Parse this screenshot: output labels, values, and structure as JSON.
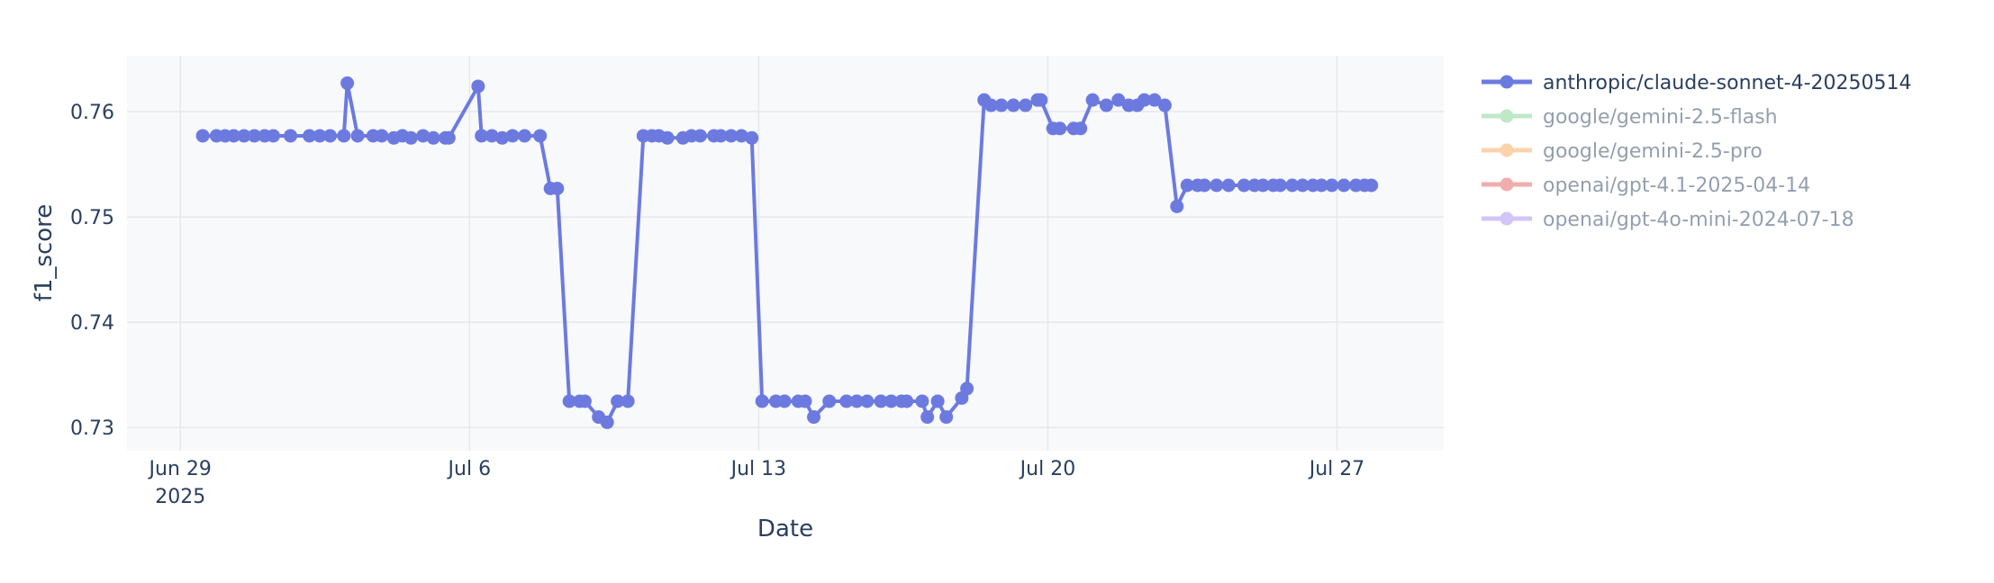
{
  "chart_data": {
    "type": "line",
    "x_label": "Date",
    "y_label": "f1_score",
    "xlim": [
      "2025-06-27T17:00",
      "2025-07-29T14:00"
    ],
    "ylim": [
      0.7278,
      0.7653
    ],
    "yticks": [
      0.73,
      0.74,
      0.75,
      0.76
    ],
    "xticks": [
      {
        "value": "2025-06-29T00:00",
        "label": "Jun 29\n2025"
      },
      {
        "value": "2025-07-06T00:00",
        "label": "Jul 6"
      },
      {
        "value": "2025-07-13T00:00",
        "label": "Jul 13"
      },
      {
        "value": "2025-07-20T00:00",
        "label": "Jul 20"
      },
      {
        "value": "2025-07-27T00:00",
        "label": "Jul 27"
      }
    ],
    "grid": true,
    "legend": "right",
    "x": [
      "2025-06-29T13:00",
      "2025-06-29T21:00",
      "2025-06-30T02:00",
      "2025-06-30T07:00",
      "2025-06-30T13:00",
      "2025-06-30T19:00",
      "2025-07-01T01:00",
      "2025-07-01T06:00",
      "2025-07-01T16:00",
      "2025-07-02T03:00",
      "2025-07-02T09:00",
      "2025-07-02T15:00",
      "2025-07-02T23:00",
      "2025-07-03T01:00",
      "2025-07-03T07:00",
      "2025-07-03T16:00",
      "2025-07-03T21:00",
      "2025-07-04T04:00",
      "2025-07-04T09:00",
      "2025-07-04T14:00",
      "2025-07-04T21:00",
      "2025-07-05T03:00",
      "2025-07-05T10:00",
      "2025-07-05T12:00",
      "2025-07-06T05:00",
      "2025-07-06T07:00",
      "2025-07-06T13:00",
      "2025-07-06T19:00",
      "2025-07-07T01:00",
      "2025-07-07T08:00",
      "2025-07-07T17:00",
      "2025-07-07T23:00",
      "2025-07-08T03:00",
      "2025-07-08T10:00",
      "2025-07-08T16:00",
      "2025-07-08T19:00",
      "2025-07-09T03:00",
      "2025-07-09T08:00",
      "2025-07-09T14:00",
      "2025-07-09T20:00",
      "2025-07-10T05:00",
      "2025-07-10T10:00",
      "2025-07-10T14:00",
      "2025-07-10T19:00",
      "2025-07-11T04:00",
      "2025-07-11T09:00",
      "2025-07-11T14:00",
      "2025-07-11T22:00",
      "2025-07-12T02:00",
      "2025-07-12T08:00",
      "2025-07-12T14:00",
      "2025-07-12T20:00",
      "2025-07-13T02:00",
      "2025-07-13T10:00",
      "2025-07-13T15:00",
      "2025-07-13T23:00",
      "2025-07-14T03:00",
      "2025-07-14T08:00",
      "2025-07-14T17:00",
      "2025-07-15T03:00",
      "2025-07-15T09:00",
      "2025-07-15T15:00",
      "2025-07-15T23:00",
      "2025-07-16T05:00",
      "2025-07-16T11:00",
      "2025-07-16T14:00",
      "2025-07-16T23:00",
      "2025-07-17T02:00",
      "2025-07-17T08:00",
      "2025-07-17T13:00",
      "2025-07-17T22:00",
      "2025-07-18T01:00",
      "2025-07-18T11:00",
      "2025-07-18T15:00",
      "2025-07-18T21:00",
      "2025-07-19T04:00",
      "2025-07-19T11:00",
      "2025-07-19T18:00",
      "2025-07-19T20:00",
      "2025-07-20T03:00",
      "2025-07-20T07:00",
      "2025-07-20T15:00",
      "2025-07-20T19:00",
      "2025-07-21T02:00",
      "2025-07-21T10:00",
      "2025-07-21T17:00",
      "2025-07-21T23:00",
      "2025-07-22T04:00",
      "2025-07-22T08:00",
      "2025-07-22T14:00",
      "2025-07-22T20:00",
      "2025-07-23T03:00",
      "2025-07-23T09:00",
      "2025-07-23T15:00",
      "2025-07-23T19:00",
      "2025-07-24T02:00",
      "2025-07-24T09:00",
      "2025-07-24T18:00",
      "2025-07-25T00:00",
      "2025-07-25T05:00",
      "2025-07-25T11:00",
      "2025-07-25T15:00",
      "2025-07-25T22:00",
      "2025-07-26T04:00",
      "2025-07-26T10:00",
      "2025-07-26T15:00",
      "2025-07-26T21:00",
      "2025-07-27T04:00",
      "2025-07-27T11:00",
      "2025-07-27T16:00",
      "2025-07-27T20:00"
    ],
    "series": [
      {
        "name": "anthropic/claude-sonnet-4-20250514",
        "color": "#6c7ae0",
        "values": [
          0.7577,
          0.7577,
          0.7577,
          0.7577,
          0.7577,
          0.7577,
          0.7577,
          0.7577,
          0.7577,
          0.7577,
          0.7577,
          0.7577,
          0.7577,
          0.7627,
          0.7577,
          0.7577,
          0.7577,
          0.7575,
          0.7577,
          0.7575,
          0.7577,
          0.7575,
          0.7575,
          0.7575,
          0.7624,
          0.7577,
          0.7577,
          0.7575,
          0.7577,
          0.7577,
          0.7577,
          0.7527,
          0.7527,
          0.7325,
          0.7325,
          0.7325,
          0.731,
          0.7305,
          0.7325,
          0.7325,
          0.7577,
          0.7577,
          0.7577,
          0.7575,
          0.7575,
          0.7577,
          0.7577,
          0.7577,
          0.7577,
          0.7577,
          0.7577,
          0.7575,
          0.7325,
          0.7325,
          0.7325,
          0.7325,
          0.7325,
          0.731,
          0.7325,
          0.7325,
          0.7325,
          0.7325,
          0.7325,
          0.7325,
          0.7325,
          0.7325,
          0.7325,
          0.731,
          0.7325,
          0.731,
          0.7328,
          0.7337,
          0.7611,
          0.7606,
          0.7606,
          0.7606,
          0.7606,
          0.7611,
          0.7611,
          0.7584,
          0.7584,
          0.7584,
          0.7584,
          0.7611,
          0.7606,
          0.7611,
          0.7606,
          0.7606,
          0.7611,
          0.7611,
          0.7606,
          0.751,
          0.753,
          0.753,
          0.753,
          0.753,
          0.753,
          0.753,
          0.753,
          0.753,
          0.753,
          0.753,
          0.753,
          0.753,
          0.753,
          0.753,
          0.753,
          0.753,
          0.753,
          0.753,
          0.753
        ]
      },
      {
        "name": "google/gemini-2.5-flash",
        "color": "#7fd38f",
        "hidden": true
      },
      {
        "name": "google/gemini-2.5-pro",
        "color": "#f6a85c",
        "hidden": true
      },
      {
        "name": "openai/gpt-4.1-2025-04-14",
        "color": "#e35d5d",
        "hidden": true
      },
      {
        "name": "openai/gpt-4o-mini-2024-07-18",
        "color": "#a98af0",
        "hidden": true
      }
    ]
  }
}
